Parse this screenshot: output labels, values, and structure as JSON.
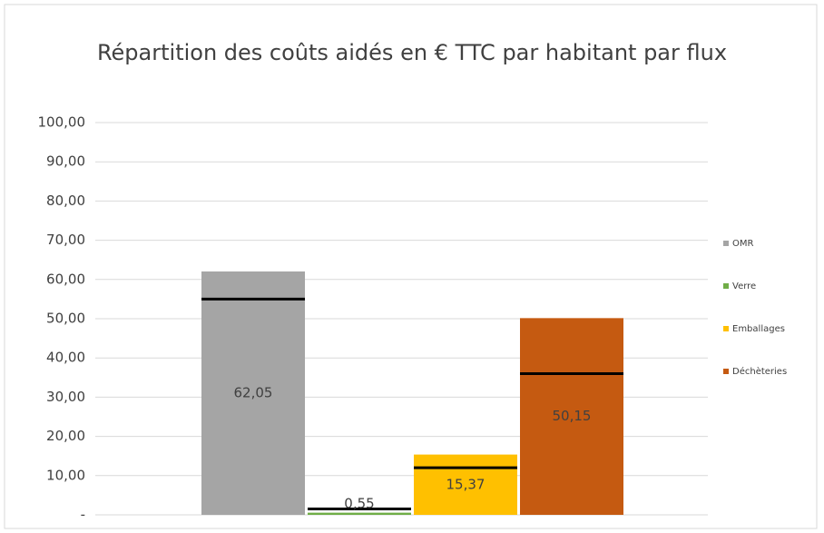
{
  "chart_data": {
    "type": "bar",
    "title": "Répartition des coûts aidés en € TTC par habitant par flux",
    "series": [
      {
        "name": "OMR",
        "color": "#a5a5a5",
        "values": [
          62.05
        ],
        "value_labels": [
          "62,05"
        ],
        "reference": [
          55
        ]
      },
      {
        "name": "Verre",
        "color": "#70ad47",
        "values": [
          0.55
        ],
        "value_labels": [
          "0,55"
        ],
        "reference": [
          1.5
        ]
      },
      {
        "name": "Emballages",
        "color": "#ffc000",
        "values": [
          15.37
        ],
        "value_labels": [
          "15,37"
        ],
        "reference": [
          12
        ]
      },
      {
        "name": "Déchèteries",
        "color": "#c55a11",
        "values": [
          50.15
        ],
        "value_labels": [
          "50,15"
        ],
        "reference": [
          36
        ]
      }
    ],
    "ylim": [
      0,
      100
    ],
    "yticks": [
      {
        "value": 0,
        "label": "-"
      },
      {
        "value": 10,
        "label": "10,00"
      },
      {
        "value": 20,
        "label": "20,00"
      },
      {
        "value": 30,
        "label": "30,00"
      },
      {
        "value": 40,
        "label": "40,00"
      },
      {
        "value": 50,
        "label": "50,00"
      },
      {
        "value": 60,
        "label": "60,00"
      },
      {
        "value": 70,
        "label": "70,00"
      },
      {
        "value": 80,
        "label": "80,00"
      },
      {
        "value": 90,
        "label": "90,00"
      },
      {
        "value": 100,
        "label": "100,00"
      }
    ],
    "grid": true,
    "legend": "right"
  }
}
